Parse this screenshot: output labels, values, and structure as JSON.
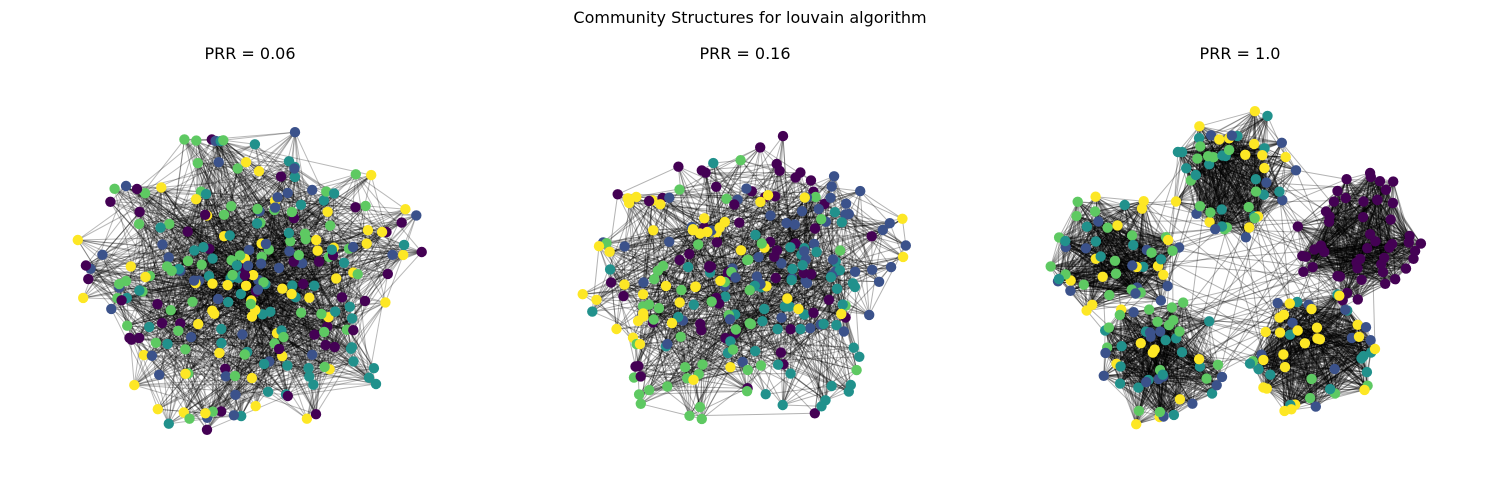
{
  "figure": {
    "title": "Community Structures for louvain algorithm"
  },
  "colors": {
    "palette": [
      "#440154",
      "#3b528b",
      "#21918c",
      "#5ec962",
      "#fde725"
    ],
    "edge": "#000000"
  },
  "panels": [
    {
      "title": "PRR = 0.06",
      "prr": 0.06,
      "communities": 5,
      "nodes_per_community": 52,
      "mixing": "high"
    },
    {
      "title": "PRR = 0.16",
      "prr": 0.16,
      "communities": 5,
      "nodes_per_community": 52,
      "mixing": "medium"
    },
    {
      "title": "PRR = 1.0",
      "prr": 1.0,
      "communities": 5,
      "nodes_per_community": 52,
      "mixing": "low"
    }
  ]
}
